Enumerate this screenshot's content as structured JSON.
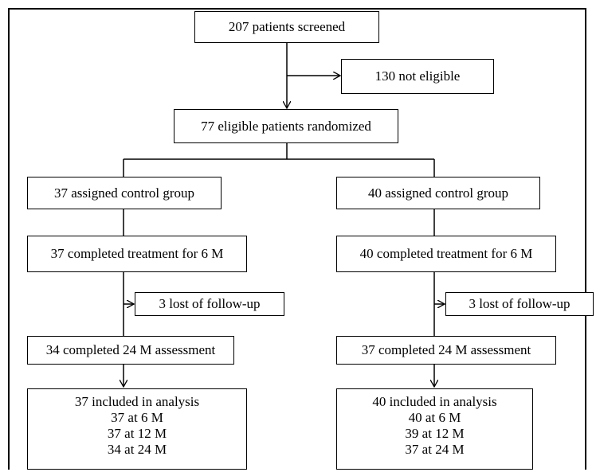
{
  "screened": "207 patients screened",
  "not_eligible": "130 not  eligible",
  "randomized": "77 eligible  patients randomized",
  "left": {
    "assigned": "37 assigned control group",
    "completed_6m": "37 completed treatment for 6 M",
    "lost": "3 lost of follow-up",
    "completed_24m": "34 completed 24 M assessment",
    "analysis": [
      "37 included in analysis",
      "37 at 6 M",
      "37 at 12 M",
      "34 at 24 M"
    ]
  },
  "right": {
    "assigned": "40 assigned control group",
    "completed_6m": "40 completed treatment for 6 M",
    "lost": "3 lost of follow-up",
    "completed_24m": "37 completed 24 M assessment",
    "analysis": [
      "40 included in analysis",
      "40 at 6 M",
      "39 at 12 M",
      "37 at 24 M"
    ]
  }
}
